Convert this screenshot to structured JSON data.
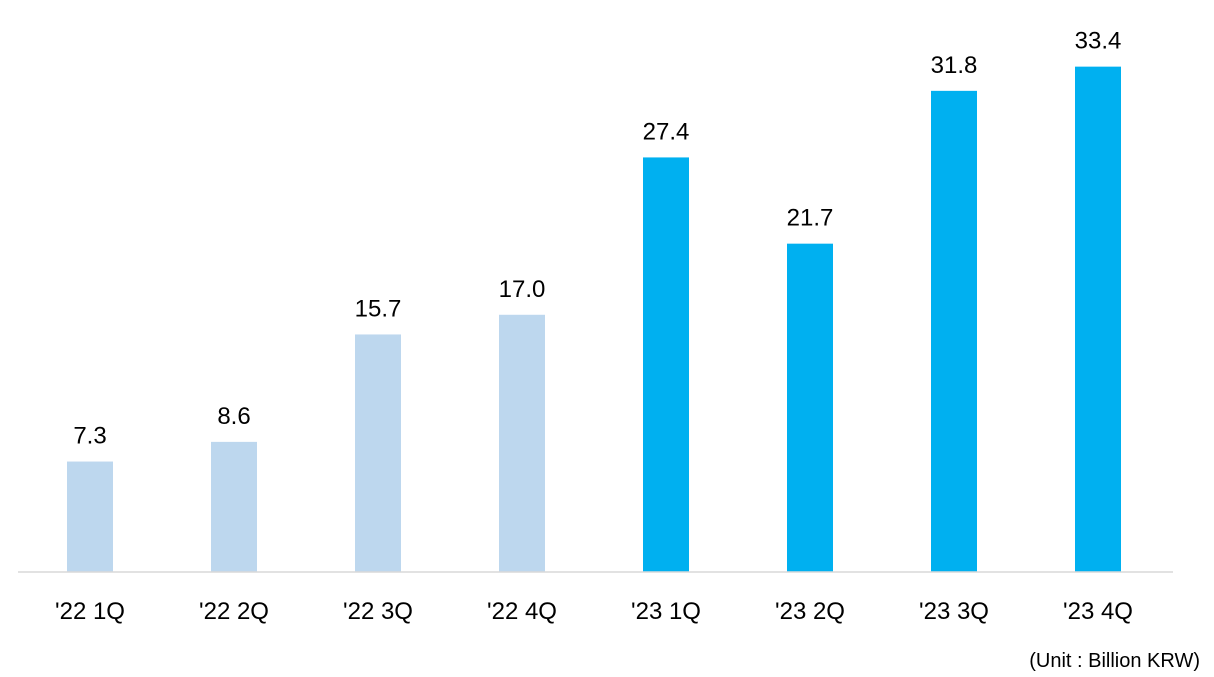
{
  "chart_data": {
    "type": "bar",
    "categories": [
      "'22 1Q",
      "'22 2Q",
      "'22 3Q",
      "'22 4Q",
      "'23 1Q",
      "'23 2Q",
      "'23 3Q",
      "'23 4Q"
    ],
    "values": [
      7.3,
      8.6,
      15.7,
      17.0,
      27.4,
      21.7,
      31.8,
      33.4
    ],
    "value_labels": [
      "7.3",
      "8.6",
      "15.7",
      "17.0",
      "27.4",
      "21.7",
      "31.8",
      "33.4"
    ],
    "bar_colors": [
      "#BDD7EE",
      "#BDD7EE",
      "#BDD7EE",
      "#BDD7EE",
      "#00B0F0",
      "#00B0F0",
      "#00B0F0",
      "#00B0F0"
    ],
    "title": "",
    "xlabel": "",
    "ylabel": "",
    "ylim": [
      0,
      34.5
    ],
    "grid": false,
    "legend": "none",
    "unit_note": "(Unit : Billion KRW)",
    "axis_color": "#D9D9D9"
  }
}
